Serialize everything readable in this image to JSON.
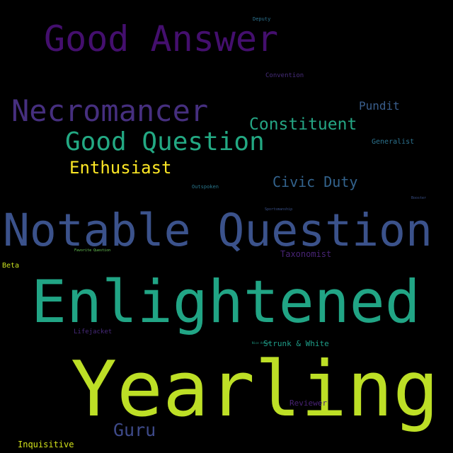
{
  "words": [
    {
      "text": "Good Answer",
      "color": "#440f6e"
    },
    {
      "text": "Necromancer",
      "color": "#462f7f"
    },
    {
      "text": "Good Question",
      "color": "#23a983"
    },
    {
      "text": "Constituent",
      "color": "#25a584"
    },
    {
      "text": "Pundit",
      "color": "#3a5e8c"
    },
    {
      "text": "Enthusiast",
      "color": "#fde725"
    },
    {
      "text": "Civic Duty",
      "color": "#33638d"
    },
    {
      "text": "Notable Question",
      "color": "#3b528b"
    },
    {
      "text": "Enlightened",
      "color": "#21a585"
    },
    {
      "text": "Yearling",
      "color": "#bddf26"
    },
    {
      "text": "Guru",
      "color": "#3e4a89"
    },
    {
      "text": "Inquisitive",
      "color": "#d2e21b"
    },
    {
      "text": "Strunk & White",
      "color": "#1f9e89"
    },
    {
      "text": "Reviewer",
      "color": "#482374"
    },
    {
      "text": "Taxonomist",
      "color": "#482475"
    },
    {
      "text": "Lifejacket",
      "color": "#472a7a"
    },
    {
      "text": "Beta",
      "color": "#c8e020"
    },
    {
      "text": "Generalist",
      "color": "#2c728e"
    },
    {
      "text": "Convention",
      "color": "#472d7b"
    },
    {
      "text": "Deputy",
      "color": "#2c728e"
    },
    {
      "text": "Outspoken",
      "color": "#2a788e"
    },
    {
      "text": "Sportsmanship",
      "color": "#3b528b"
    },
    {
      "text": "Favorite Question",
      "color": "#6ece58"
    },
    {
      "text": "Booster",
      "color": "#3b518b"
    },
    {
      "text": "Nice Answer",
      "color": "#1f9e89"
    }
  ]
}
